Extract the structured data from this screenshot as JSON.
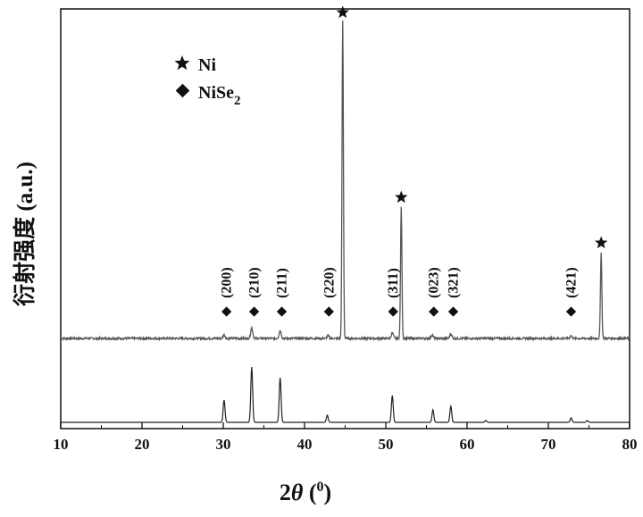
{
  "chart_data": {
    "type": "line",
    "xlabel_prefix": "2",
    "xlabel_theta": "θ",
    "xlabel_open": " (",
    "xlabel_sup": "0",
    "xlabel_close": ")",
    "ylabel": "衍射强度 (a.u.)",
    "xlim": [
      10,
      80
    ],
    "x_ticks": [
      10,
      20,
      30,
      40,
      50,
      60,
      70,
      80
    ],
    "legend": {
      "placement": "top-left",
      "entries": [
        {
          "marker": "star",
          "label": "Ni",
          "sub": ""
        },
        {
          "marker": "diamond",
          "label": "NiSe",
          "sub": "2"
        }
      ]
    },
    "series": [
      {
        "role": "measured-pattern",
        "baseline": 0,
        "peaks": [
          {
            "x": 30.1,
            "h": 4
          },
          {
            "x": 33.5,
            "h": 12
          },
          {
            "x": 37.0,
            "h": 9
          },
          {
            "x": 42.9,
            "h": 3
          },
          {
            "x": 44.7,
            "h": 355
          },
          {
            "x": 50.8,
            "h": 6
          },
          {
            "x": 51.9,
            "h": 148
          },
          {
            "x": 55.7,
            "h": 4
          },
          {
            "x": 58.0,
            "h": 5
          },
          {
            "x": 72.8,
            "h": 3
          },
          {
            "x": 76.5,
            "h": 97
          }
        ]
      },
      {
        "role": "reference-pattern",
        "peaks": [
          {
            "x": 30.1,
            "h": 25
          },
          {
            "x": 33.5,
            "h": 62
          },
          {
            "x": 37.0,
            "h": 50
          },
          {
            "x": 42.8,
            "h": 8
          },
          {
            "x": 50.8,
            "h": 30
          },
          {
            "x": 55.8,
            "h": 14
          },
          {
            "x": 58.0,
            "h": 18
          },
          {
            "x": 62.3,
            "h": 2
          },
          {
            "x": 72.8,
            "h": 5
          },
          {
            "x": 74.8,
            "h": 2
          }
        ]
      }
    ],
    "ni_star_markers": [
      44.7,
      51.9,
      76.5
    ],
    "nise2_markers": [
      {
        "x": 30.4,
        "hkl": "(200)"
      },
      {
        "x": 33.8,
        "hkl": "(210)"
      },
      {
        "x": 37.2,
        "hkl": "(211)"
      },
      {
        "x": 43.0,
        "hkl": "(220)"
      },
      {
        "x": 50.9,
        "hkl": "(311)"
      },
      {
        "x": 55.9,
        "hkl": "(023)"
      },
      {
        "x": 58.3,
        "hkl": "(321)"
      },
      {
        "x": 72.8,
        "hkl": "(421)"
      }
    ]
  }
}
